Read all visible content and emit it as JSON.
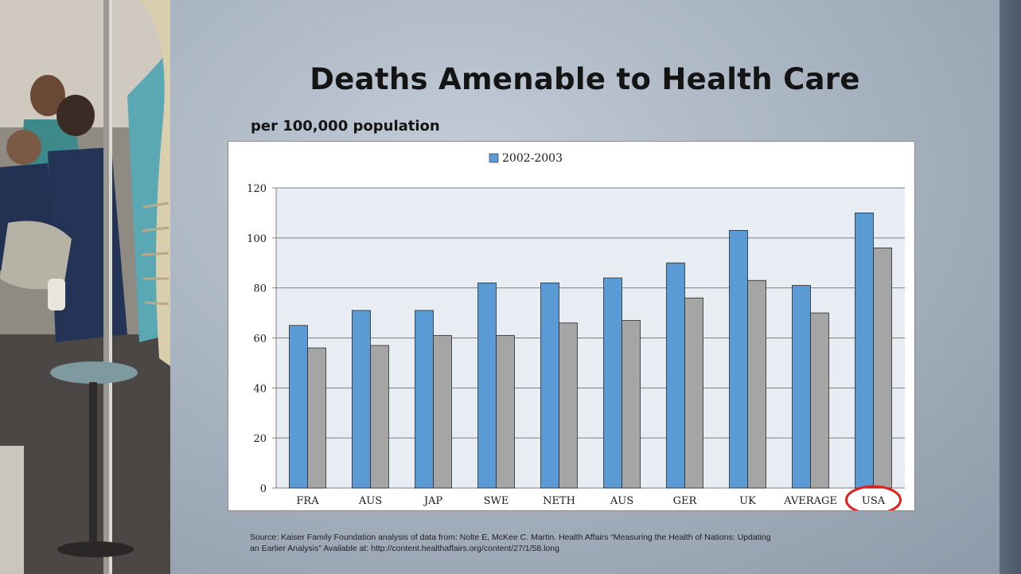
{
  "slide": {
    "title": "Deaths Amenable to Health Care",
    "subtitle": "per 100,000 population",
    "source_line1": "Source: Kaiser Family Foundation analysis of data from: Nolte E, McKee C. Martin. Health Affairs “Measuring the Health of Nations: Updating",
    "source_line2": "an Earlier Analysis” Available at:  http://content.healthaffairs.org/content/27/1/58.long"
  },
  "colors": {
    "series1": "#5b9bd5",
    "series2": "#a5a5a5",
    "highlight": "#e02020"
  },
  "chart_data": {
    "type": "bar",
    "categories": [
      "FRA",
      "AUS",
      "JAP",
      "SWE",
      "NETH",
      "AUS",
      "GER",
      "UK",
      "AVERAGE",
      "USA"
    ],
    "series": [
      {
        "name": "2002-2003",
        "values": [
          65,
          71,
          71,
          82,
          82,
          84,
          90,
          103,
          81,
          110
        ]
      },
      {
        "values": [
          56,
          57,
          61,
          61,
          66,
          67,
          76,
          83,
          70,
          96
        ]
      }
    ],
    "yticks": [
      0,
      20,
      40,
      60,
      80,
      100,
      120
    ],
    "ylim": [
      0,
      120
    ],
    "legend_position": "top",
    "grid": true,
    "highlighted_category": "USA"
  }
}
